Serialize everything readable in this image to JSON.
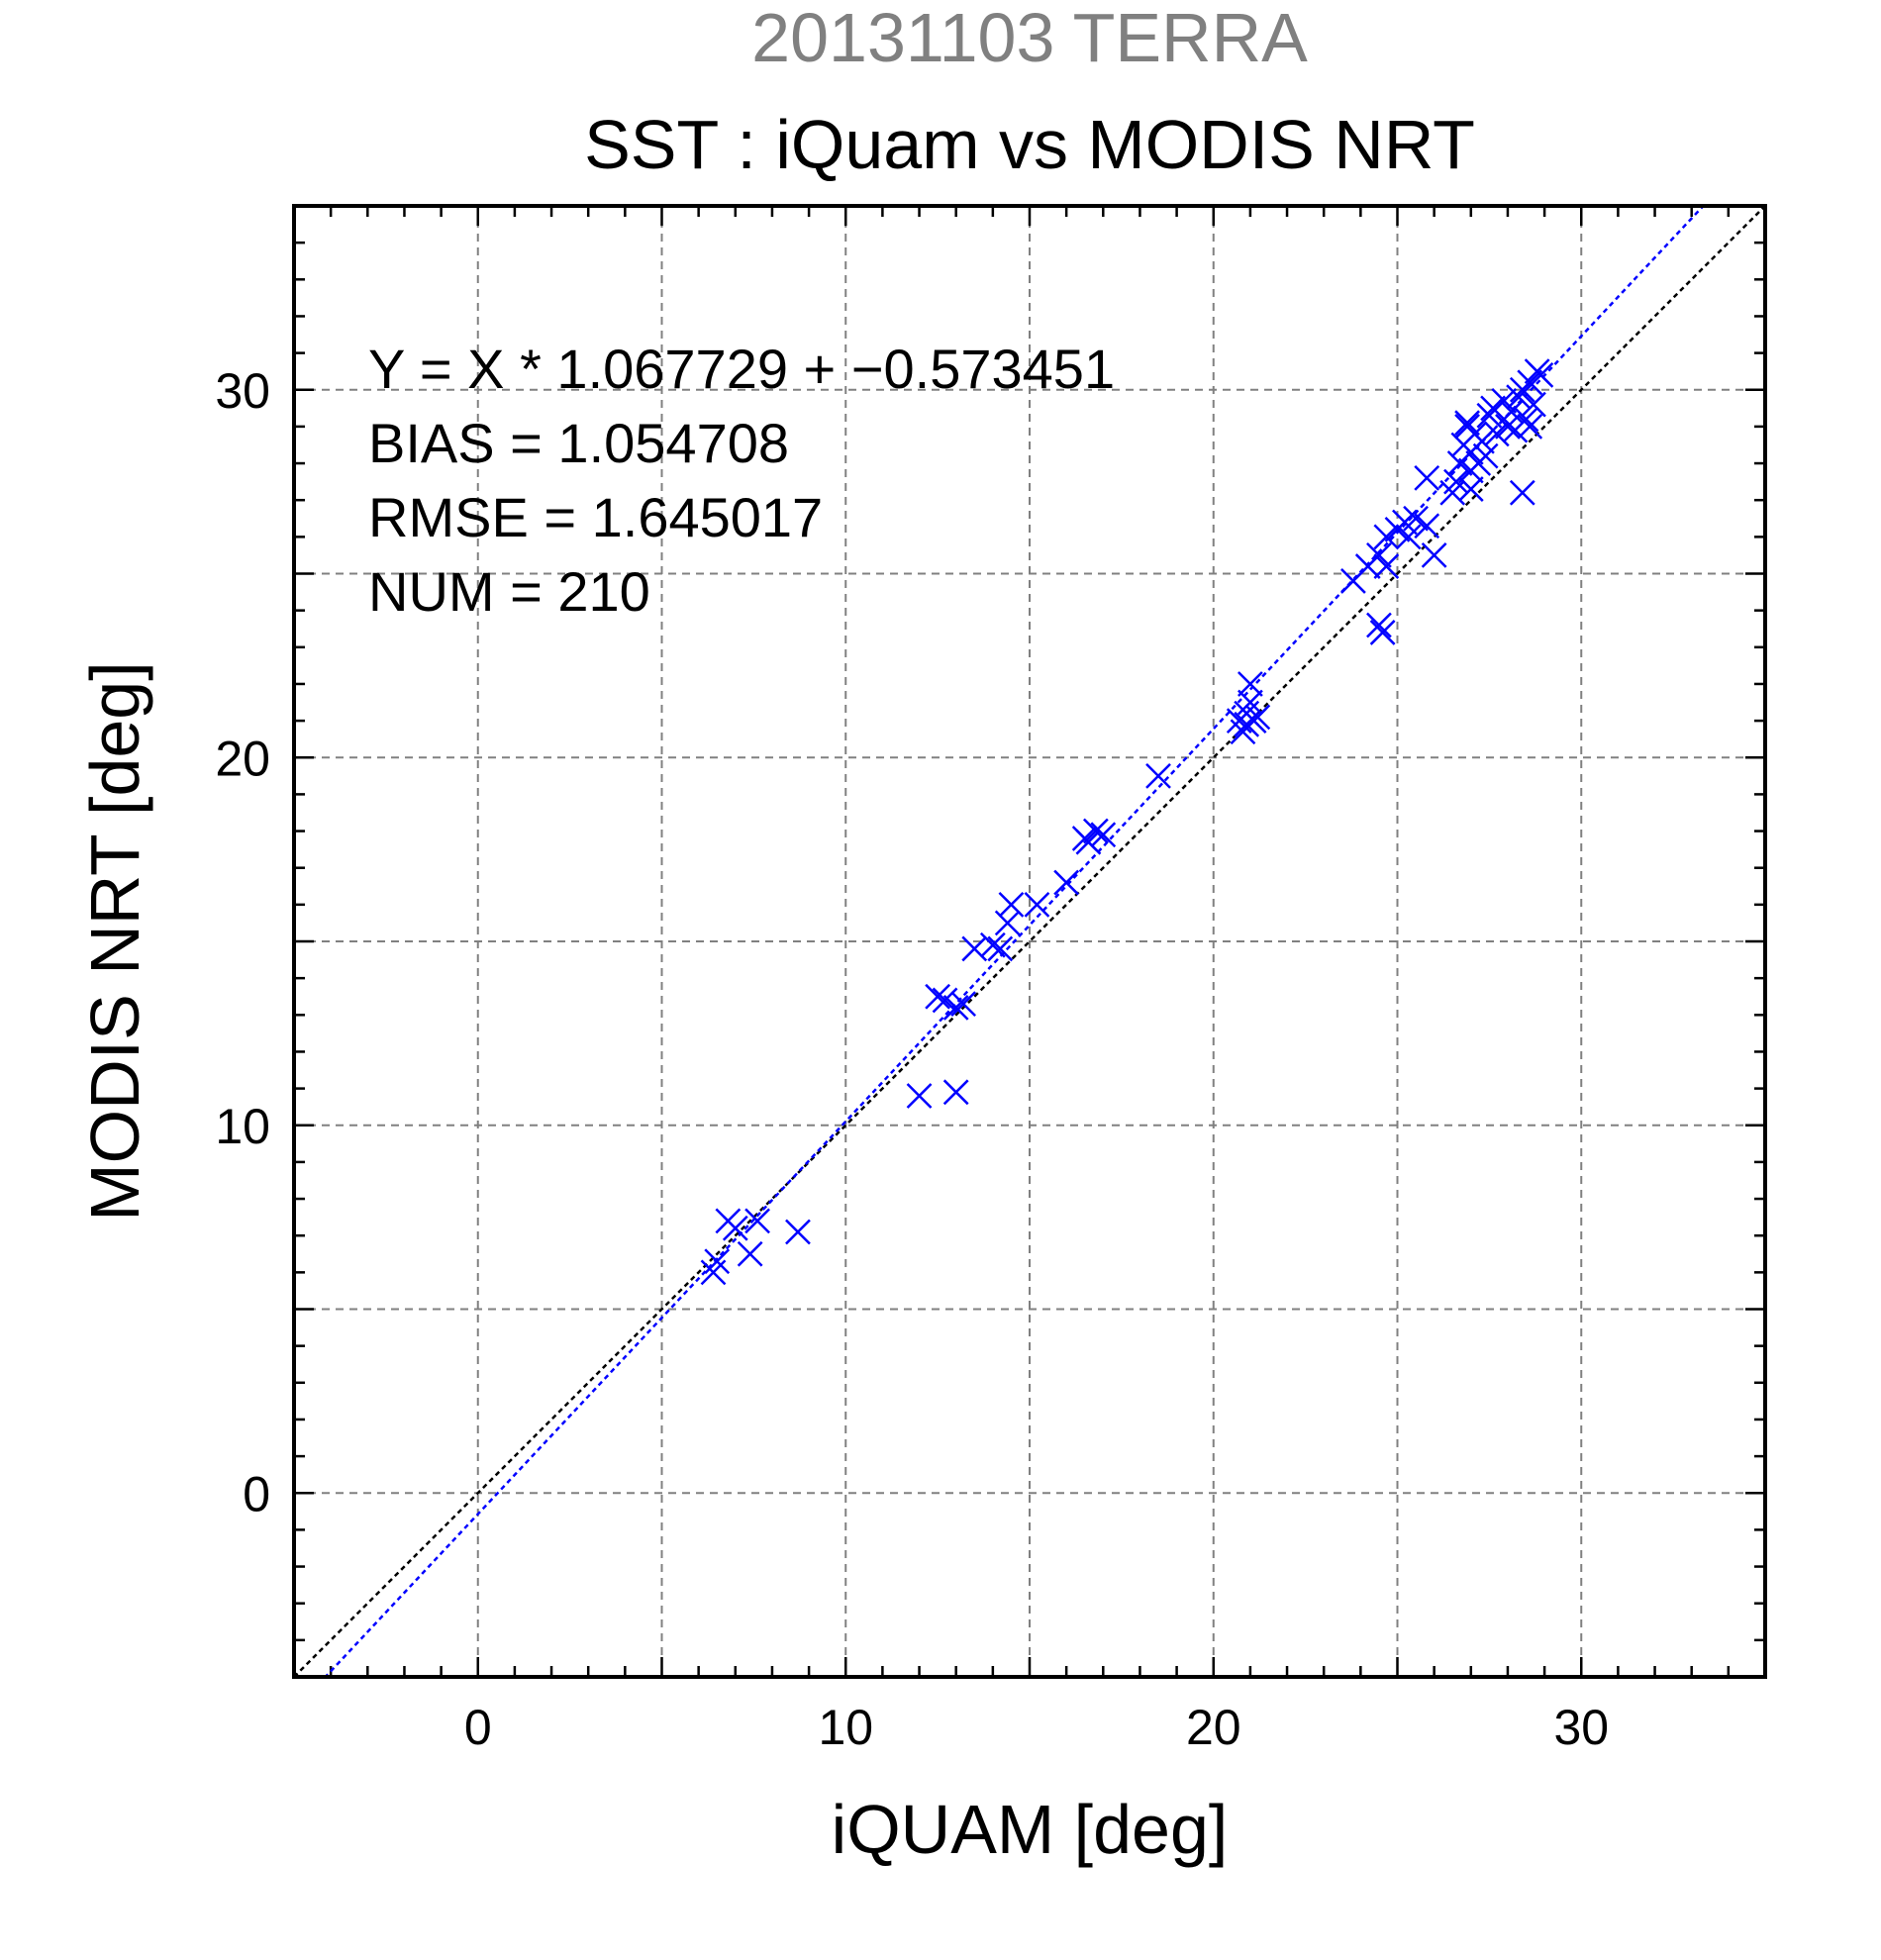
{
  "chart_data": {
    "type": "scatter",
    "suptitle": "20131103 TERRA",
    "title": "SST : iQuam vs MODIS NRT",
    "xlabel": "iQUAM [deg]",
    "ylabel": "MODIS NRT [deg]",
    "xlim": [
      -5,
      35
    ],
    "ylim": [
      -5,
      35
    ],
    "xticks": [
      0,
      10,
      20,
      30
    ],
    "yticks": [
      0,
      10,
      20,
      30
    ],
    "xtick_labels": [
      "0",
      "10",
      "20",
      "30"
    ],
    "ytick_labels": [
      "0",
      "10",
      "20",
      "30"
    ],
    "grid": true,
    "grid_step": 5,
    "minor_tick_step": 1,
    "marker": "x",
    "point_color": "#0000ff",
    "stats": {
      "equation": "Y = X * 1.067729 + −0.573451",
      "bias": "BIAS = 1.054708",
      "rmse": "RMSE = 1.645017",
      "num": "NUM = 210"
    },
    "fit_line": {
      "slope": 1.067729,
      "intercept": -0.573451,
      "color": "#0000ff"
    },
    "identity_line": {
      "slope": 1,
      "intercept": 0,
      "color": "#000000"
    },
    "points": [
      [
        6.4,
        6.0
      ],
      [
        6.5,
        6.3
      ],
      [
        6.8,
        7.4
      ],
      [
        7.0,
        7.2
      ],
      [
        7.4,
        6.5
      ],
      [
        7.6,
        7.4
      ],
      [
        8.7,
        7.1
      ],
      [
        12.0,
        10.8
      ],
      [
        13.0,
        10.9
      ],
      [
        12.5,
        13.5
      ],
      [
        12.7,
        13.4
      ],
      [
        13.0,
        13.2
      ],
      [
        13.2,
        13.3
      ],
      [
        13.5,
        14.8
      ],
      [
        14.0,
        14.9
      ],
      [
        14.2,
        14.8
      ],
      [
        14.4,
        15.5
      ],
      [
        14.5,
        16.0
      ],
      [
        15.2,
        16.0
      ],
      [
        16.0,
        16.6
      ],
      [
        16.5,
        17.8
      ],
      [
        16.6,
        17.7
      ],
      [
        16.8,
        18.0
      ],
      [
        17.0,
        17.9
      ],
      [
        18.5,
        19.5
      ],
      [
        20.7,
        21.0
      ],
      [
        20.8,
        20.7
      ],
      [
        20.9,
        21.2
      ],
      [
        21.0,
        22.0
      ],
      [
        21.1,
        21.0
      ],
      [
        21.2,
        21.1
      ],
      [
        21.0,
        21.5
      ],
      [
        20.9,
        20.9
      ],
      [
        23.8,
        24.8
      ],
      [
        24.2,
        25.2
      ],
      [
        24.5,
        25.5
      ],
      [
        24.5,
        23.6
      ],
      [
        24.6,
        23.4
      ],
      [
        24.7,
        25.2
      ],
      [
        24.7,
        26.0
      ],
      [
        25.0,
        26.2
      ],
      [
        25.2,
        26.4
      ],
      [
        25.3,
        26.0
      ],
      [
        25.5,
        26.5
      ],
      [
        25.8,
        26.3
      ],
      [
        26.0,
        25.5
      ],
      [
        25.8,
        27.6
      ],
      [
        26.5,
        27.2
      ],
      [
        26.6,
        27.5
      ],
      [
        26.7,
        28.0
      ],
      [
        26.8,
        28.5
      ],
      [
        26.9,
        29.0
      ],
      [
        27.0,
        28.3
      ],
      [
        27.0,
        27.8
      ],
      [
        27.1,
        28.8
      ],
      [
        27.2,
        28.0
      ],
      [
        27.3,
        28.6
      ],
      [
        27.4,
        28.2
      ],
      [
        27.5,
        29.3
      ],
      [
        27.6,
        29.5
      ],
      [
        27.7,
        28.8
      ],
      [
        27.9,
        29.7
      ],
      [
        28.0,
        29.0
      ],
      [
        28.1,
        29.4
      ],
      [
        28.2,
        28.9
      ],
      [
        28.3,
        29.8
      ],
      [
        28.4,
        30.0
      ],
      [
        28.4,
        27.2
      ],
      [
        28.5,
        29.2
      ],
      [
        28.6,
        30.2
      ],
      [
        28.7,
        29.6
      ],
      [
        28.8,
        30.5
      ],
      [
        28.6,
        29.0
      ],
      [
        28.9,
        30.4
      ],
      [
        27.0,
        27.3
      ],
      [
        26.9,
        29.1
      ]
    ]
  }
}
